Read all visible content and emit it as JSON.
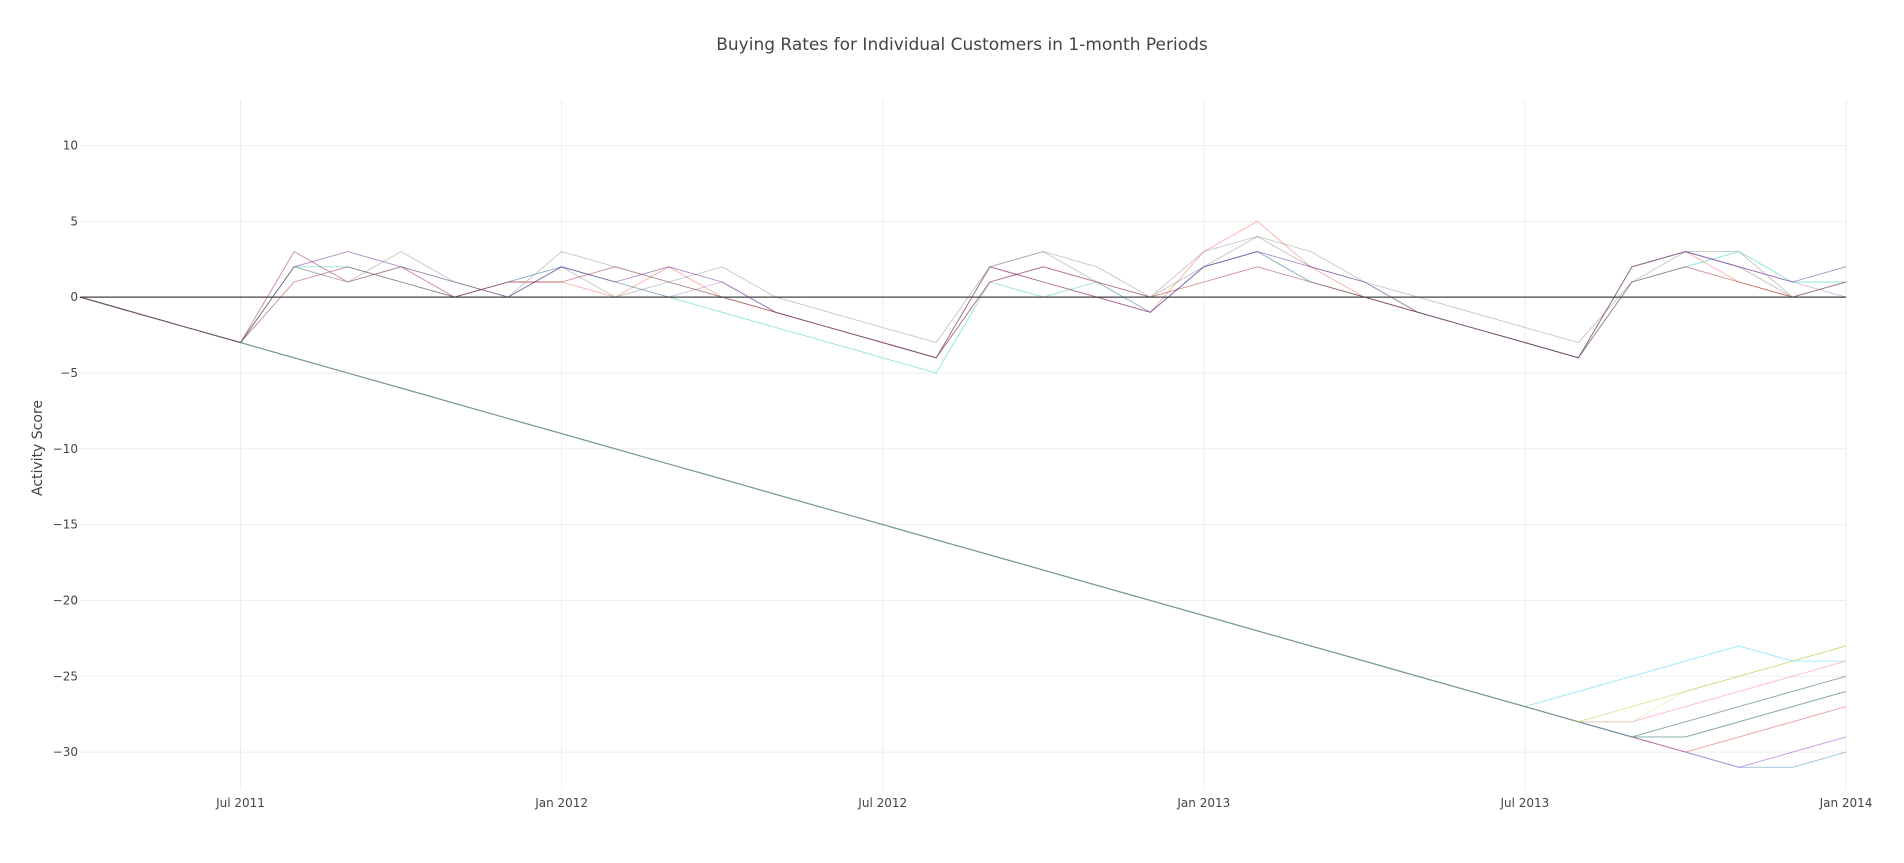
{
  "chart_data": {
    "type": "line",
    "title": "Buying Rates for Individual Customers in 1-month Periods",
    "xlabel": "",
    "ylabel": "Activity Score",
    "x_ticks": [
      "Jul 2011",
      "Jan 2012",
      "Jul 2012",
      "Jan 2013",
      "Jul 2013",
      "Jan 2014"
    ],
    "y_ticks": [
      10,
      5,
      0,
      -5,
      -10,
      -15,
      -20,
      -25,
      -30
    ],
    "xlim": [
      "2011-04",
      "2014-01"
    ],
    "ylim": [
      -32.5,
      13
    ],
    "grid": true,
    "legend": "none",
    "x": [
      "2011-04",
      "2011-05",
      "2011-06",
      "2011-07",
      "2011-08",
      "2011-09",
      "2011-10",
      "2011-11",
      "2011-12",
      "2012-01",
      "2012-02",
      "2012-03",
      "2012-04",
      "2012-05",
      "2012-06",
      "2012-07",
      "2012-08",
      "2012-09",
      "2012-10",
      "2012-11",
      "2012-12",
      "2013-01",
      "2013-02",
      "2013-03",
      "2013-04",
      "2013-05",
      "2013-06",
      "2013-07",
      "2013-08",
      "2013-09",
      "2013-10",
      "2013-11",
      "2013-12",
      "2014-01"
    ],
    "series": [
      {
        "color": "#636efa",
        "values": [
          0,
          -1,
          -2,
          -3,
          -4,
          -5,
          -6,
          -7,
          -8,
          -9,
          -10,
          -11,
          -12,
          -13,
          -14,
          -15,
          -16,
          -17,
          -18,
          -19,
          -20,
          -21,
          -22,
          -23,
          -24,
          -25,
          -26,
          -27,
          -28,
          -29,
          -30,
          -31,
          -30,
          -29
        ]
      },
      {
        "color": "#EF553B",
        "values": [
          0,
          -1,
          -2,
          -3,
          3,
          1,
          2,
          0,
          1,
          1,
          0,
          2,
          0,
          -1,
          -2,
          -3,
          -4,
          2,
          1,
          0,
          -1,
          3,
          5,
          2,
          0,
          -1,
          -2,
          -3,
          -4,
          2,
          3,
          1,
          0,
          0
        ]
      },
      {
        "color": "#00cc96",
        "values": [
          0,
          -1,
          -2,
          -3,
          2,
          2,
          1,
          0,
          1,
          2,
          1,
          0,
          -1,
          -2,
          -3,
          -4,
          -5,
          1,
          0,
          1,
          -1,
          2,
          3,
          1,
          0,
          -1,
          -2,
          -3,
          -4,
          1,
          2,
          3,
          1,
          1
        ]
      },
      {
        "color": "#ab63fa",
        "values": [
          0,
          -1,
          -2,
          -3,
          -4,
          -5,
          -6,
          -7,
          -8,
          -9,
          -10,
          -11,
          -12,
          -13,
          -14,
          -15,
          -16,
          -17,
          -18,
          -19,
          -20,
          -21,
          -22,
          -23,
          -24,
          -25,
          -26,
          -27,
          -28,
          -29,
          -28,
          -27,
          -26,
          -25
        ]
      },
      {
        "color": "#FFA15A",
        "values": [
          0,
          -1,
          -2,
          -3,
          -4,
          -5,
          -6,
          -7,
          -8,
          -9,
          -10,
          -11,
          -12,
          -13,
          -14,
          -15,
          -16,
          -17,
          -18,
          -19,
          -20,
          -21,
          -22,
          -23,
          -24,
          -25,
          -26,
          -27,
          -28,
          -29,
          -29,
          -28,
          -27,
          -26
        ]
      },
      {
        "color": "#19d3f3",
        "values": [
          0,
          -1,
          -2,
          -3,
          -4,
          -5,
          -6,
          -7,
          -8,
          -9,
          -10,
          -11,
          -12,
          -13,
          -14,
          -15,
          -16,
          -17,
          -18,
          -19,
          -20,
          -21,
          -22,
          -23,
          -24,
          -25,
          -26,
          -27,
          -26,
          -25,
          -24,
          -23,
          -24,
          -24
        ]
      },
      {
        "color": "#FF6692",
        "values": [
          0,
          -1,
          -2,
          -3,
          -4,
          -5,
          -6,
          -7,
          -8,
          -9,
          -10,
          -11,
          -12,
          -13,
          -14,
          -15,
          -16,
          -17,
          -18,
          -19,
          -20,
          -21,
          -22,
          -23,
          -24,
          -25,
          -26,
          -27,
          -28,
          -28,
          -27,
          -26,
          -25,
          -24
        ]
      },
      {
        "color": "#B6E880",
        "values": [
          0,
          -1,
          -2,
          -3,
          -4,
          -5,
          -6,
          -7,
          -8,
          -9,
          -10,
          -11,
          -12,
          -13,
          -14,
          -15,
          -16,
          -17,
          -18,
          -19,
          -20,
          -21,
          -22,
          -23,
          -24,
          -25,
          -26,
          -27,
          -28,
          -28,
          -26,
          -25,
          -24,
          -23
        ]
      },
      {
        "color": "#7f7f7f",
        "values": [
          0,
          -1,
          -2,
          -3,
          2,
          1,
          3,
          1,
          0,
          2,
          0,
          1,
          2,
          0,
          -1,
          -2,
          -3,
          2,
          3,
          1,
          0,
          2,
          4,
          2,
          1,
          0,
          -1,
          -2,
          -3,
          1,
          3,
          2,
          0,
          1
        ]
      },
      {
        "color": "#1f77b4",
        "values": [
          0,
          -1,
          -2,
          -3,
          -4,
          -5,
          -6,
          -7,
          -8,
          -9,
          -10,
          -11,
          -12,
          -13,
          -14,
          -15,
          -16,
          -17,
          -18,
          -19,
          -20,
          -21,
          -22,
          -23,
          -24,
          -25,
          -26,
          -27,
          -28,
          -29,
          -30,
          -31,
          -31,
          -30
        ]
      },
      {
        "color": "#d62728",
        "values": [
          0,
          -1,
          -2,
          -3,
          -4,
          -5,
          -6,
          -7,
          -8,
          -9,
          -10,
          -11,
          -12,
          -13,
          -14,
          -15,
          -16,
          -17,
          -18,
          -19,
          -20,
          -21,
          -22,
          -23,
          -24,
          -25,
          -26,
          -27,
          -28,
          -29,
          -30,
          -29,
          -28,
          -27
        ]
      },
      {
        "color": "#2ca02c",
        "values": [
          0,
          -1,
          -2,
          -3,
          -4,
          -5,
          -6,
          -7,
          -8,
          -9,
          -10,
          -11,
          -12,
          -13,
          -14,
          -15,
          -16,
          -17,
          -18,
          -19,
          -20,
          -21,
          -22,
          -23,
          -24,
          -25,
          -26,
          -27,
          -28,
          -29,
          -28,
          -27,
          -26,
          -25
        ]
      },
      {
        "color": "#9467bd",
        "values": [
          0,
          -1,
          -2,
          -3,
          3,
          1,
          2,
          0,
          1,
          2,
          1,
          0,
          1,
          -1,
          -2,
          -3,
          -4,
          1,
          2,
          1,
          -1,
          2,
          3,
          1,
          0,
          -1,
          -2,
          -3,
          -4,
          2,
          3,
          2,
          1,
          0
        ]
      },
      {
        "color": "#8c564b",
        "values": [
          0,
          -1,
          -2,
          -3,
          -4,
          -5,
          -6,
          -7,
          -8,
          -9,
          -10,
          -11,
          -12,
          -13,
          -14,
          -15,
          -16,
          -17,
          -18,
          -19,
          -20,
          -21,
          -22,
          -23,
          -24,
          -25,
          -26,
          -27,
          -28,
          -29,
          -29,
          -28,
          -27,
          -26
        ]
      },
      {
        "color": "#e377c2",
        "values": [
          0,
          -1,
          -2,
          -3,
          -4,
          -5,
          -6,
          -7,
          -8,
          -9,
          -10,
          -11,
          -12,
          -13,
          -14,
          -15,
          -16,
          -17,
          -18,
          -19,
          -20,
          -21,
          -22,
          -23,
          -24,
          -25,
          -26,
          -27,
          -28,
          -29,
          -30,
          -31,
          -30,
          -29
        ]
      },
      {
        "color": "#bcbd22",
        "values": [
          0,
          -1,
          -2,
          -3,
          -4,
          -5,
          -6,
          -7,
          -8,
          -9,
          -10,
          -11,
          -12,
          -13,
          -14,
          -15,
          -16,
          -17,
          -18,
          -19,
          -20,
          -21,
          -22,
          -23,
          -24,
          -25,
          -26,
          -27,
          -28,
          -27,
          -26,
          -25,
          -24,
          -23
        ]
      },
      {
        "color": "#17becf",
        "values": [
          0,
          -1,
          -2,
          -3,
          -4,
          -5,
          -6,
          -7,
          -8,
          -9,
          -10,
          -11,
          -12,
          -13,
          -14,
          -15,
          -16,
          -17,
          -18,
          -19,
          -20,
          -21,
          -22,
          -23,
          -24,
          -25,
          -26,
          -27,
          -28,
          -29,
          -29,
          -28,
          -27,
          -26
        ]
      },
      {
        "color": "#8b0000",
        "values": [
          0,
          -1,
          -2,
          -3,
          1,
          2,
          1,
          0,
          1,
          1,
          2,
          1,
          0,
          -1,
          -2,
          -3,
          -4,
          1,
          2,
          1,
          0,
          1,
          2,
          1,
          0,
          -1,
          -2,
          -3,
          -4,
          1,
          2,
          1,
          0,
          1
        ]
      },
      {
        "color": "#4b0082",
        "values": [
          0,
          -1,
          -2,
          -3,
          2,
          3,
          2,
          1,
          0,
          2,
          1,
          2,
          1,
          -1,
          -2,
          -3,
          -4,
          2,
          1,
          0,
          -1,
          2,
          3,
          2,
          1,
          -1,
          -2,
          -3,
          -4,
          2,
          3,
          2,
          1,
          2
        ]
      },
      {
        "color": "#808080",
        "values": [
          0,
          -1,
          -2,
          -3,
          2,
          1,
          2,
          1,
          0,
          3,
          2,
          1,
          0,
          -1,
          -2,
          -3,
          -4,
          2,
          3,
          2,
          0,
          3,
          4,
          3,
          1,
          -1,
          -2,
          -3,
          -4,
          2,
          3,
          3,
          0,
          1
        ]
      }
    ]
  }
}
